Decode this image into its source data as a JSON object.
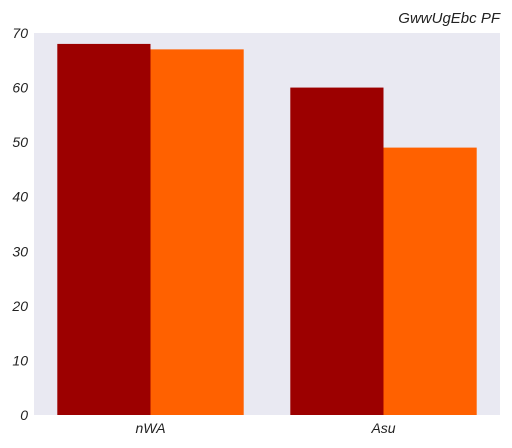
{
  "chart_data": {
    "type": "bar",
    "title": "GwwUgEbc PF",
    "xlabel": "",
    "ylabel": "",
    "categories": [
      "nWA",
      "Asu"
    ],
    "series": [
      {
        "values": [
          68,
          60
        ],
        "color": "#9c0000"
      },
      {
        "values": [
          67,
          49
        ],
        "color": "#ff6100"
      }
    ],
    "ylim": [
      0,
      70
    ],
    "yticks": [
      0,
      10,
      20,
      30,
      40,
      50,
      60,
      70
    ],
    "plot_background": "#e9e9f2",
    "grid": false,
    "legend": "none"
  }
}
